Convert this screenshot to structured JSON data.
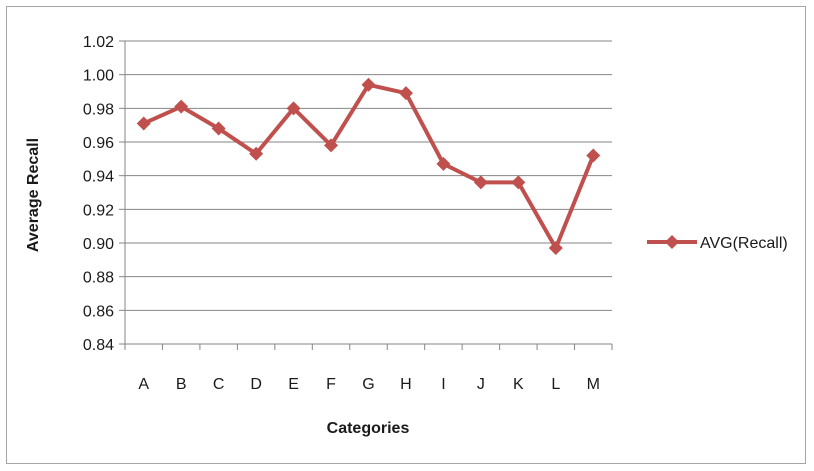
{
  "chart_data": {
    "type": "line",
    "categories": [
      "A",
      "B",
      "C",
      "D",
      "E",
      "F",
      "G",
      "H",
      "I",
      "J",
      "K",
      "L",
      "M"
    ],
    "series": [
      {
        "name": "AVG(Recall)",
        "values": [
          0.971,
          0.981,
          0.968,
          0.953,
          0.98,
          0.958,
          0.994,
          0.989,
          0.947,
          0.936,
          0.936,
          0.897,
          0.952
        ],
        "color": "#c0504d"
      }
    ],
    "xlabel": "Categories",
    "ylabel": "Average Recall",
    "ylim": [
      0.84,
      1.02
    ],
    "yticks": [
      "0.84",
      "0.86",
      "0.88",
      "0.90",
      "0.92",
      "0.94",
      "0.96",
      "0.98",
      "1.00",
      "1.02"
    ],
    "grid": true,
    "legend_position": "right",
    "marker": "diamond-icon"
  }
}
